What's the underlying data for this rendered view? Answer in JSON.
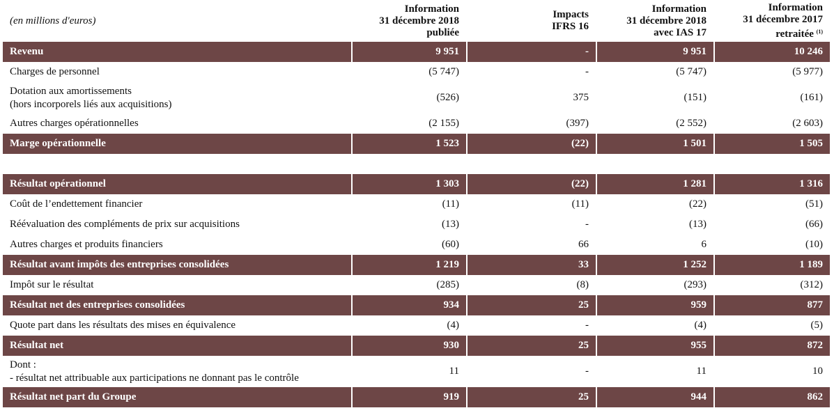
{
  "header": {
    "units": "(en millions d'euros)",
    "columns": [
      {
        "lines": [
          "Information",
          "31 décembre 2018",
          "publiée"
        ],
        "note": ""
      },
      {
        "lines": [
          "Impacts",
          "IFRS 16"
        ],
        "note": ""
      },
      {
        "lines": [
          "Information",
          "31 décembre 2018",
          "avec IAS 17"
        ],
        "note": ""
      },
      {
        "lines": [
          "Information",
          "31 décembre 2017",
          "retraitée"
        ],
        "note": "(1)"
      }
    ]
  },
  "rows": [
    {
      "type": "hl",
      "label": [
        "Revenu"
      ],
      "values": [
        "9 951",
        "-",
        "9 951",
        "10 246"
      ]
    },
    {
      "type": "row",
      "label": [
        "Charges de personnel"
      ],
      "values": [
        "(5 747)",
        "-",
        "(5 747)",
        "(5 977)"
      ]
    },
    {
      "type": "row2",
      "label": [
        "Dotation aux amortissements",
        "(hors incorporels liés aux acquisitions)"
      ],
      "values": [
        "(526)",
        "375",
        "(151)",
        "(161)"
      ]
    },
    {
      "type": "row",
      "label": [
        "Autres charges opérationnelles"
      ],
      "values": [
        "(2 155)",
        "(397)",
        "(2 552)",
        "(2 603)"
      ]
    },
    {
      "type": "hl",
      "label": [
        "Marge opérationnelle"
      ],
      "values": [
        "1 523",
        "(22)",
        "1 501",
        "1 505"
      ]
    },
    {
      "type": "gap",
      "label": [
        ""
      ],
      "values": [
        "",
        "",
        "",
        ""
      ]
    },
    {
      "type": "hl",
      "label": [
        "Résultat opérationnel"
      ],
      "values": [
        "1 303",
        "(22)",
        "1 281",
        "1 316"
      ]
    },
    {
      "type": "row",
      "label": [
        "Coût de l’endettement financier"
      ],
      "values": [
        "(11)",
        "(11)",
        "(22)",
        "(51)"
      ]
    },
    {
      "type": "row",
      "label": [
        "Réévaluation des compléments de prix sur acquisitions"
      ],
      "values": [
        "(13)",
        "-",
        "(13)",
        "(66)"
      ]
    },
    {
      "type": "row",
      "label": [
        "Autres charges et produits financiers"
      ],
      "values": [
        "(60)",
        "66",
        "6",
        "(10)"
      ]
    },
    {
      "type": "hl",
      "label": [
        "Résultat avant impôts des entreprises consolidées"
      ],
      "values": [
        "1 219",
        "33",
        "1 252",
        "1 189"
      ]
    },
    {
      "type": "row",
      "label": [
        "Impôt sur le résultat"
      ],
      "values": [
        "(285)",
        "(8)",
        "(293)",
        "(312)"
      ]
    },
    {
      "type": "hl",
      "label": [
        "Résultat net des entreprises consolidées"
      ],
      "values": [
        "934",
        "25",
        "959",
        "877"
      ]
    },
    {
      "type": "row",
      "label": [
        "Quote part dans les résultats des mises en équivalence"
      ],
      "values": [
        "(4)",
        "-",
        "(4)",
        "(5)"
      ]
    },
    {
      "type": "hl",
      "label": [
        "Résultat net"
      ],
      "values": [
        "930",
        "25",
        "955",
        "872"
      ]
    },
    {
      "type": "row2",
      "label": [
        "Dont :",
        "- résultat net attribuable aux participations ne donnant pas le contrôle"
      ],
      "values": [
        "11",
        "-",
        "11",
        "10"
      ]
    },
    {
      "type": "hl",
      "label": [
        "Résultat net part du Groupe"
      ],
      "values": [
        "919",
        "25",
        "944",
        "862"
      ]
    }
  ],
  "colors": {
    "highlight_bg": "#6d4646",
    "highlight_text": "#ffffff"
  }
}
